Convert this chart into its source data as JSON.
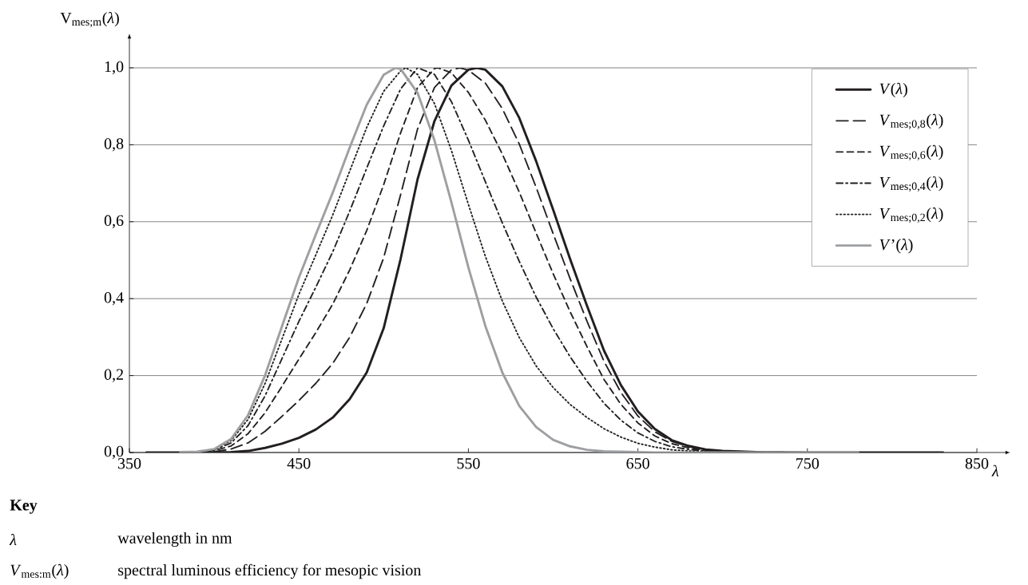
{
  "chart_data": {
    "type": "line",
    "ylabel": "V$_{mes;m}$(*λ*)",
    "xlabel": "*λ*",
    "xlim": [
      350,
      850
    ],
    "xticks": [
      350,
      450,
      550,
      650,
      750,
      850
    ],
    "ylim": [
      0,
      1
    ],
    "yticks": [
      {
        "value": 0,
        "label": "0,0"
      },
      {
        "value": 0.2,
        "label": "0,2"
      },
      {
        "value": 0.4,
        "label": "0,4"
      },
      {
        "value": 0.6,
        "label": "0,6"
      },
      {
        "value": 0.8,
        "label": "0,8"
      },
      {
        "value": 1,
        "label": "1,0"
      }
    ],
    "grid": "y",
    "legend": "top right",
    "series": [
      {
        "name": "*V*(*λ*)",
        "color": "#231f20",
        "line_style": "solid",
        "x": [
          360,
          380,
          390,
          400,
          410,
          420,
          430,
          440,
          450,
          460,
          470,
          480,
          490,
          500,
          510,
          520,
          530,
          540,
          550,
          555,
          560,
          570,
          580,
          590,
          600,
          610,
          620,
          630,
          640,
          650,
          660,
          670,
          680,
          690,
          700,
          720,
          750,
          780,
          830
        ],
        "values": [
          0,
          0,
          0,
          0,
          0.001,
          0.004,
          0.012,
          0.023,
          0.038,
          0.06,
          0.091,
          0.139,
          0.208,
          0.323,
          0.503,
          0.71,
          0.862,
          0.954,
          0.995,
          1.0,
          0.995,
          0.952,
          0.87,
          0.757,
          0.631,
          0.503,
          0.381,
          0.265,
          0.175,
          0.107,
          0.061,
          0.032,
          0.017,
          0.008,
          0.004,
          0.001,
          0,
          0,
          0
        ]
      },
      {
        "name": "*V*$_{mes;0,8}$(*λ*)",
        "color": "#231f20",
        "line_style": "long dashed",
        "x": [
          390,
          400,
          410,
          420,
          430,
          440,
          450,
          460,
          470,
          480,
          490,
          500,
          510,
          520,
          530,
          540,
          545,
          550,
          560,
          570,
          580,
          590,
          600,
          610,
          620,
          630,
          640,
          650,
          660,
          670,
          680,
          690,
          700,
          720,
          750,
          780
        ],
        "values": [
          0.001,
          0.002,
          0.009,
          0.025,
          0.055,
          0.094,
          0.135,
          0.18,
          0.232,
          0.3,
          0.387,
          0.506,
          0.67,
          0.841,
          0.949,
          0.995,
          1.0,
          0.994,
          0.96,
          0.894,
          0.802,
          0.689,
          0.569,
          0.452,
          0.341,
          0.237,
          0.156,
          0.095,
          0.054,
          0.029,
          0.015,
          0.007,
          0.004,
          0.001,
          0,
          0
        ]
      },
      {
        "name": "*V*$_{mes;0,6}$(*λ*)",
        "color": "#231f20",
        "line_style": "dashed",
        "x": [
          390,
          400,
          410,
          420,
          430,
          440,
          450,
          460,
          470,
          480,
          490,
          500,
          510,
          520,
          530,
          532,
          540,
          550,
          560,
          570,
          580,
          590,
          600,
          610,
          620,
          630,
          640,
          650,
          660,
          670,
          680,
          690,
          700,
          720,
          750
        ],
        "values": [
          0.001,
          0.005,
          0.017,
          0.049,
          0.103,
          0.172,
          0.243,
          0.312,
          0.386,
          0.475,
          0.577,
          0.696,
          0.831,
          0.949,
          0.998,
          1.0,
          0.987,
          0.936,
          0.864,
          0.776,
          0.677,
          0.57,
          0.465,
          0.366,
          0.275,
          0.19,
          0.125,
          0.077,
          0.043,
          0.023,
          0.012,
          0.006,
          0.003,
          0.001,
          0
        ]
      },
      {
        "name": "*V*$_{mes;0,4}$(*λ*)",
        "color": "#231f20",
        "line_style": "dash dot",
        "x": [
          390,
          400,
          410,
          420,
          430,
          440,
          450,
          460,
          470,
          480,
          490,
          500,
          510,
          520,
          530,
          540,
          550,
          560,
          570,
          580,
          590,
          600,
          610,
          620,
          630,
          640,
          650,
          660,
          670,
          680,
          690,
          700,
          720
        ],
        "values": [
          0.002,
          0.007,
          0.025,
          0.07,
          0.147,
          0.244,
          0.341,
          0.43,
          0.522,
          0.628,
          0.739,
          0.849,
          0.945,
          1.0,
          0.983,
          0.912,
          0.812,
          0.704,
          0.597,
          0.497,
          0.404,
          0.322,
          0.249,
          0.185,
          0.128,
          0.084,
          0.051,
          0.029,
          0.015,
          0.008,
          0.004,
          0.002,
          0.001
        ]
      },
      {
        "name": "*V*$_{mes;0,2}$(*λ*)",
        "color": "#231f20",
        "line_style": "dotted",
        "x": [
          380,
          390,
          400,
          410,
          420,
          430,
          440,
          450,
          460,
          470,
          480,
          490,
          500,
          510,
          513,
          520,
          530,
          540,
          550,
          560,
          570,
          580,
          590,
          600,
          610,
          620,
          630,
          640,
          650,
          660,
          670,
          680,
          690,
          700,
          720
        ],
        "values": [
          0.001,
          0.002,
          0.008,
          0.031,
          0.086,
          0.179,
          0.295,
          0.411,
          0.514,
          0.618,
          0.732,
          0.845,
          0.939,
          0.992,
          1.0,
          0.983,
          0.907,
          0.785,
          0.645,
          0.51,
          0.394,
          0.299,
          0.225,
          0.169,
          0.125,
          0.091,
          0.062,
          0.04,
          0.024,
          0.014,
          0.007,
          0.004,
          0.002,
          0.001,
          0
        ]
      },
      {
        "name": "*V*’(*λ*)",
        "color": "#9d9fa2",
        "line_style": "solid",
        "x": [
          380,
          390,
          400,
          410,
          420,
          430,
          440,
          450,
          460,
          470,
          480,
          490,
          500,
          507,
          510,
          520,
          530,
          540,
          550,
          560,
          570,
          580,
          590,
          600,
          610,
          620,
          630,
          640,
          650,
          660,
          670,
          680,
          690,
          700,
          720,
          750,
          780
        ],
        "values": [
          0.001,
          0.002,
          0.009,
          0.035,
          0.097,
          0.2,
          0.328,
          0.455,
          0.567,
          0.676,
          0.793,
          0.904,
          0.982,
          1.0,
          0.997,
          0.935,
          0.811,
          0.65,
          0.481,
          0.329,
          0.208,
          0.121,
          0.066,
          0.033,
          0.016,
          0.007,
          0.003,
          0.002,
          0.001,
          0,
          0,
          0,
          0,
          0,
          0,
          0,
          0
        ]
      }
    ],
    "annotations": [
      "Key",
      "*λ*",
      "wavelength in nm",
      "*V*$_{mes:m}$(*λ*)",
      "spectral luminous efficiency for mesopic vision"
    ]
  }
}
